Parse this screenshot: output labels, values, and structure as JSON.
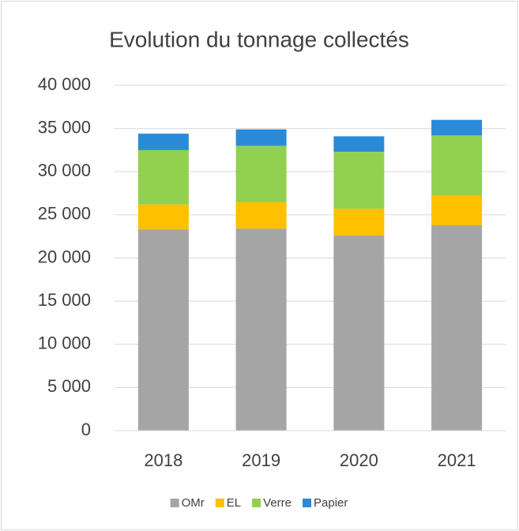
{
  "chart_data": {
    "type": "stacked-bar",
    "title": "Evolution du tonnage collectés",
    "categories": [
      "2018",
      "2019",
      "2020",
      "2021"
    ],
    "series": [
      {
        "name": "OMr",
        "color": "#a5a5a5",
        "values": [
          23300,
          23400,
          22600,
          23800
        ]
      },
      {
        "name": "EL",
        "color": "#ffc000",
        "values": [
          2900,
          3100,
          3100,
          3400
        ]
      },
      {
        "name": "Verre",
        "color": "#92d050",
        "values": [
          6300,
          6500,
          6600,
          7000
        ]
      },
      {
        "name": "Papier",
        "color": "#2a8ad8",
        "values": [
          1900,
          1900,
          1800,
          1800
        ]
      }
    ],
    "ylim": [
      0,
      40000
    ],
    "yticks": [
      0,
      {
        "value": 5000,
        "label": "5 000"
      },
      {
        "value": 10000,
        "label": "10 000"
      },
      {
        "value": 15000,
        "label": "15 000"
      },
      {
        "value": 20000,
        "label": "20 000"
      },
      {
        "value": 25000,
        "label": "25 000"
      },
      {
        "value": 30000,
        "label": "30 000"
      },
      {
        "value": 35000,
        "label": "35 000"
      },
      {
        "value": 40000,
        "label": "40 000"
      }
    ],
    "grid": true,
    "legend": "bottom"
  }
}
